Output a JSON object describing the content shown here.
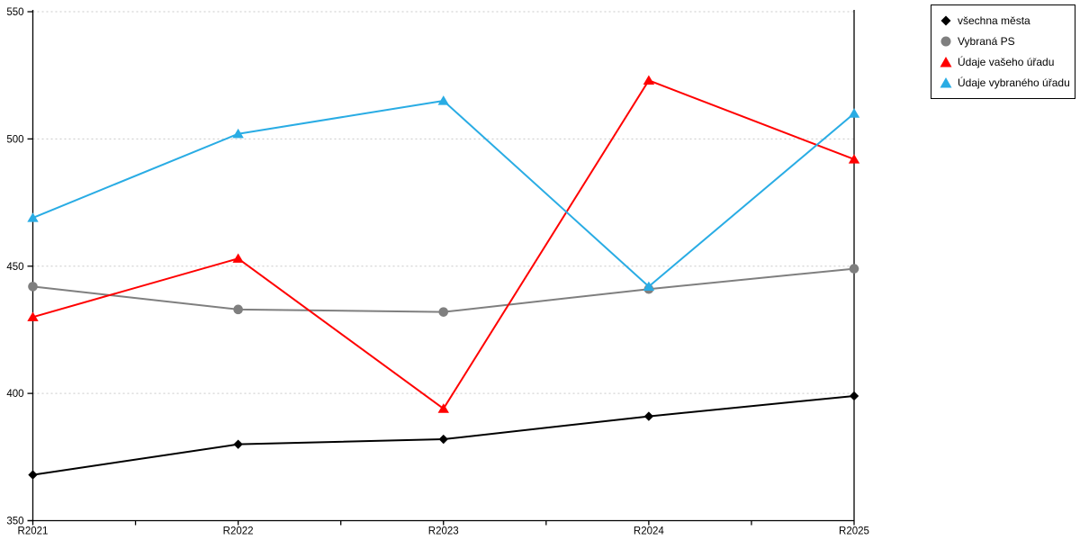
{
  "chart_data": {
    "type": "line",
    "title": "",
    "xlabel": "",
    "ylabel": "",
    "categories": [
      "R2021",
      "R2022",
      "R2023",
      "R2024",
      "R2025"
    ],
    "series": [
      {
        "name": "všechna města",
        "color": "#000000",
        "marker": "diamond",
        "values": [
          368,
          380,
          382,
          391,
          399
        ]
      },
      {
        "name": "Vybraná PS",
        "color": "#7f7f7f",
        "marker": "circle",
        "values": [
          442,
          433,
          432,
          441,
          449
        ]
      },
      {
        "name": "Údaje vašeho úřadu",
        "color": "#ff0000",
        "marker": "triangle",
        "values": [
          430,
          453,
          394,
          523,
          492
        ]
      },
      {
        "name": "Údaje vybraného úřadu",
        "color": "#29ace4",
        "marker": "triangle",
        "values": [
          469,
          502,
          515,
          442,
          510
        ]
      }
    ],
    "ylim": [
      350,
      550
    ],
    "yticks": [
      350,
      400,
      450,
      500,
      550
    ],
    "grid": "horizontal-dotted",
    "gridline_color": "#c9c9c9",
    "axis_color": "#000000",
    "legend_position": "top-right"
  }
}
